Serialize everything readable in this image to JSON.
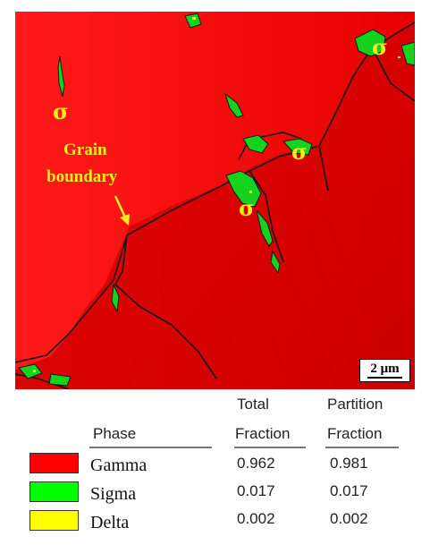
{
  "micrograph": {
    "grain_boundary_label": [
      "Grain",
      "boundary"
    ],
    "sigma_symbol": "σ",
    "colors": {
      "gamma": "#f20000",
      "sigma": "#14d21e",
      "delta": "#f2f200",
      "boundary": "#111111",
      "label": "#f2ee1a"
    }
  },
  "scale_bar": {
    "label": "2 μm"
  },
  "legend": {
    "headers": {
      "phase": "Phase",
      "total_line1": "Total",
      "total_line2": "Fraction",
      "partition_line1": "Partition",
      "partition_line2": "Fraction"
    },
    "rows": [
      {
        "phase": "Gamma",
        "color": "#ff0000",
        "total": "0.962",
        "partition": "0.981"
      },
      {
        "phase": "Sigma",
        "color": "#00ff00",
        "total": "0.017",
        "partition": "0.017"
      },
      {
        "phase": "Delta",
        "color": "#ffff00",
        "total": "0.002",
        "partition": "0.002"
      }
    ]
  }
}
